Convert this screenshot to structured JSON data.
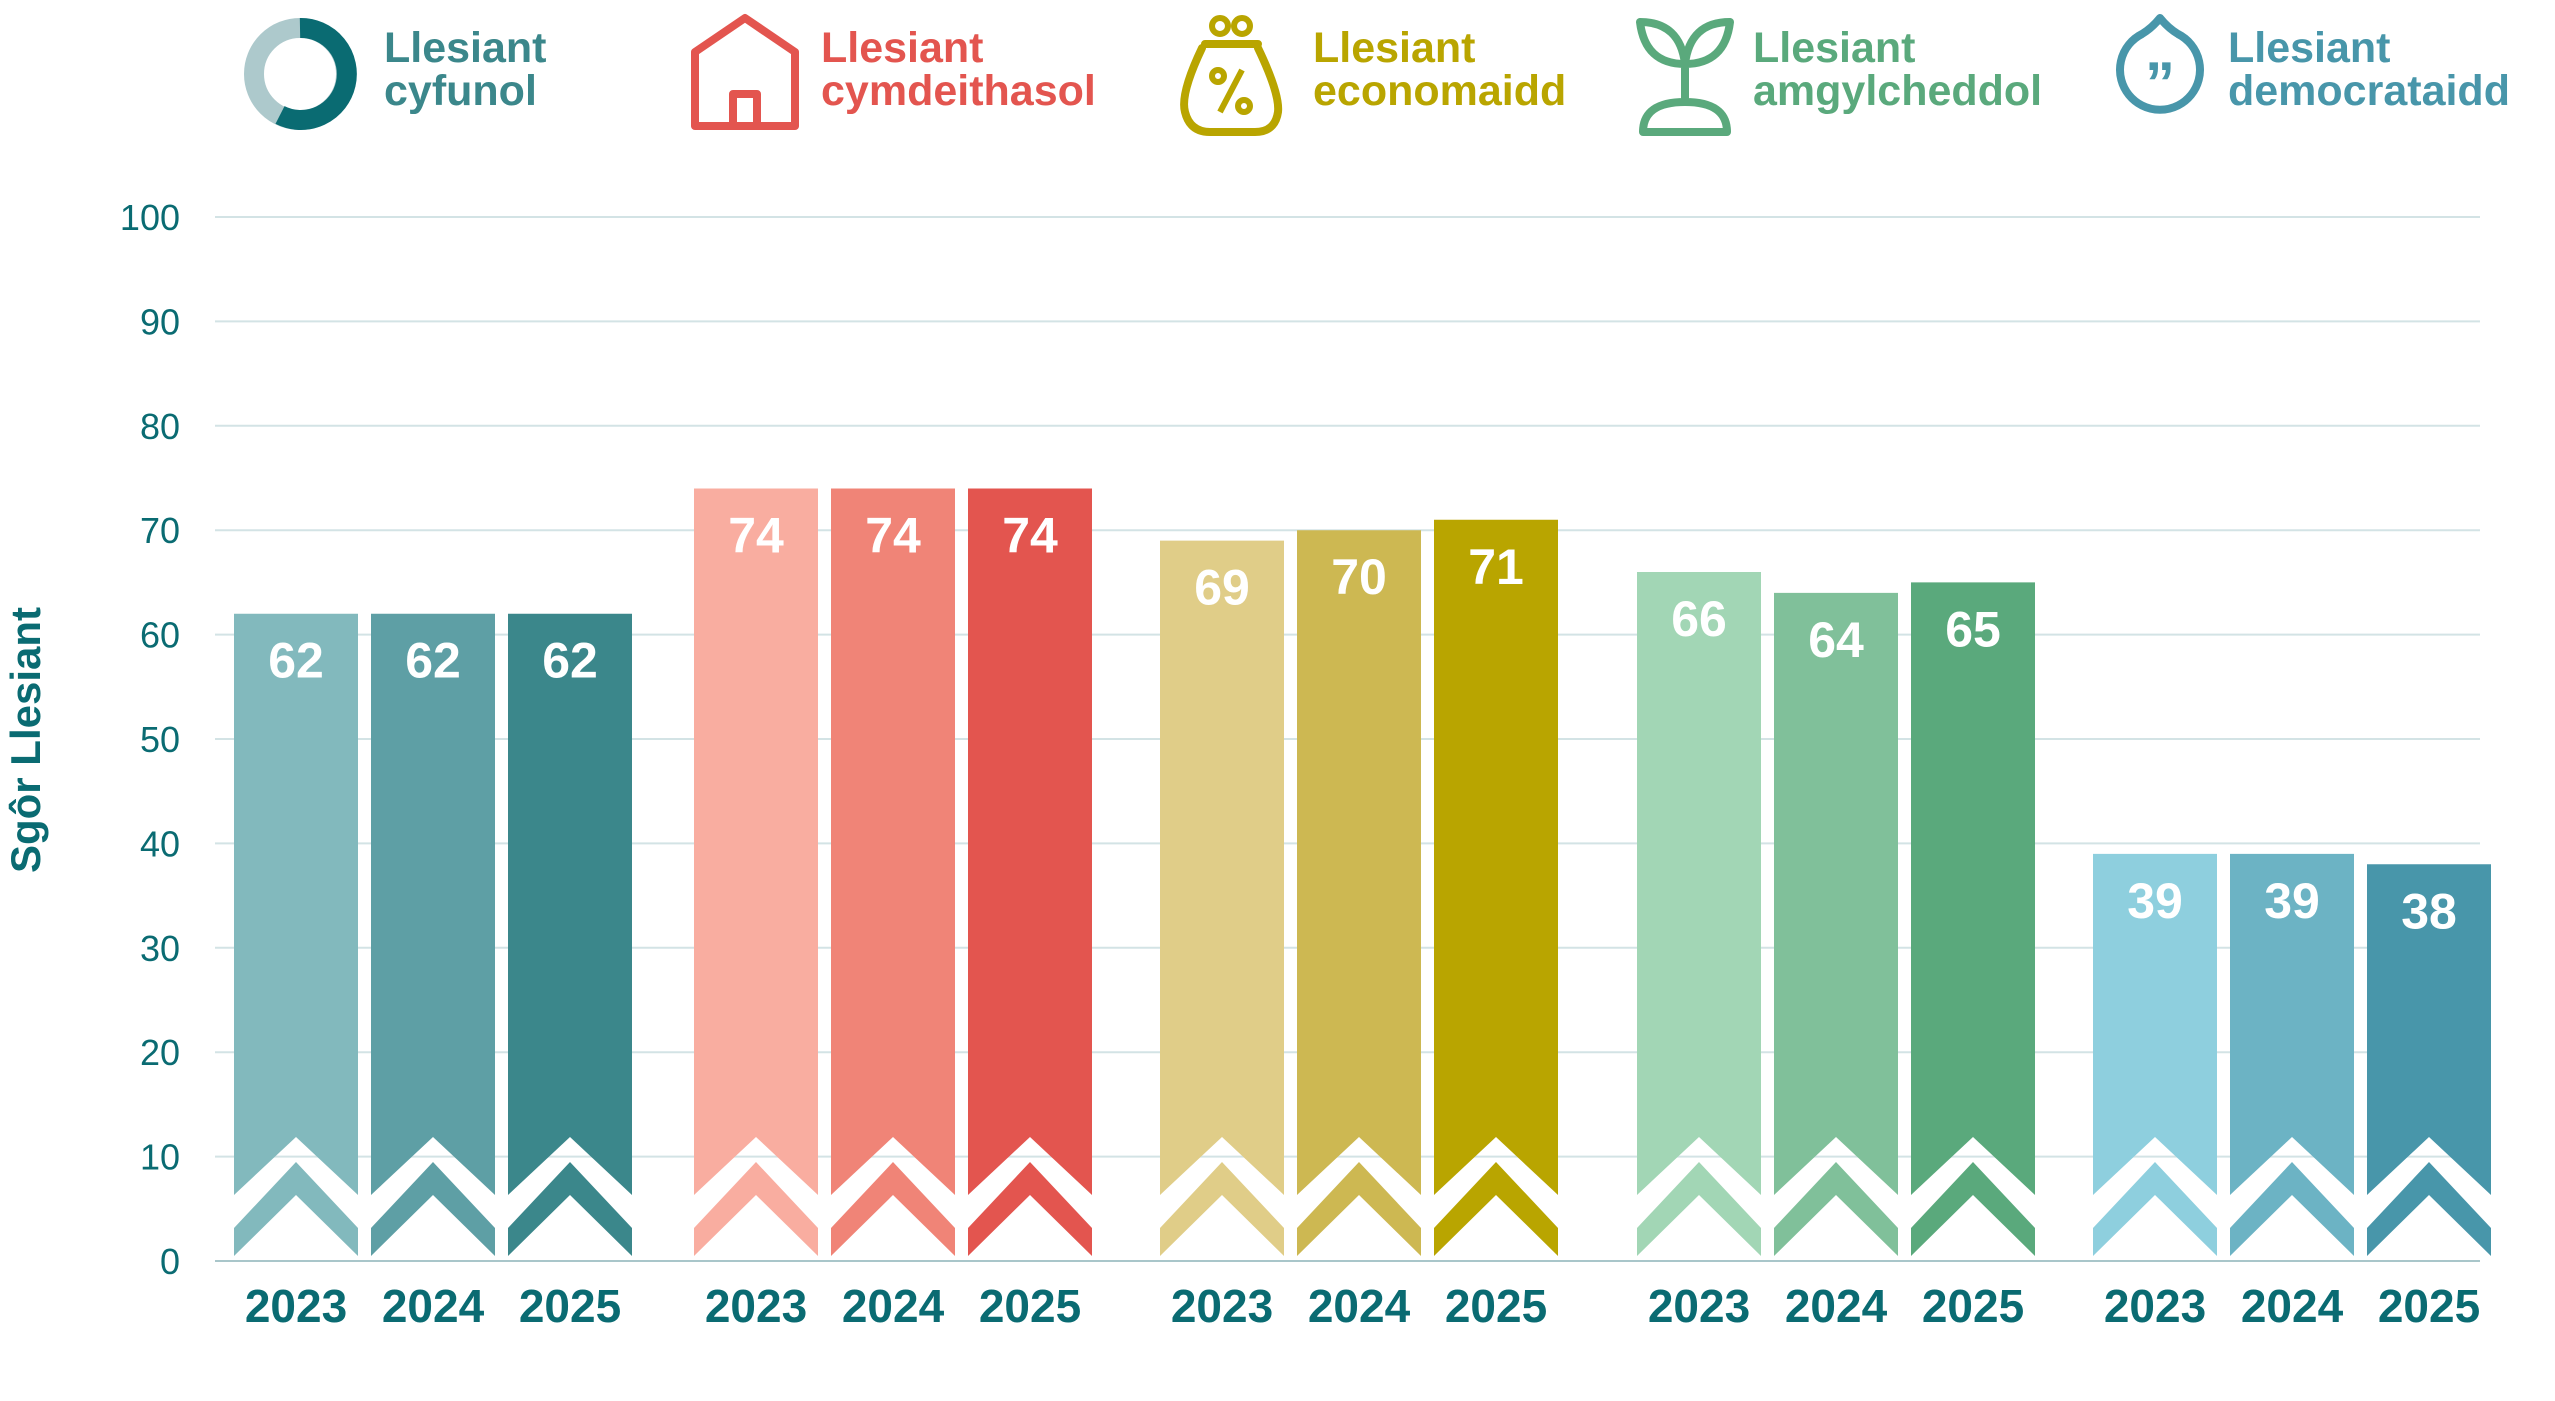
{
  "chart_data": {
    "type": "bar",
    "title": "",
    "xlabel": "",
    "ylabel": "Sgôr Llesiant",
    "ylim": [
      0,
      100
    ],
    "yticks": [
      0,
      10,
      20,
      30,
      40,
      50,
      60,
      70,
      80,
      90,
      100
    ],
    "grid": true,
    "legend_placement": "top",
    "categories": [
      "2023",
      "2024",
      "2025"
    ],
    "groups": [
      {
        "name": "Llesiant cyfunol",
        "lines": [
          "Llesiant",
          "cyfunol"
        ],
        "icon": "donut-icon",
        "color": "#3b878b",
        "bar_colors": [
          "#82b9bd",
          "#5e9fa5",
          "#3b878b"
        ],
        "values": [
          62,
          62,
          62
        ]
      },
      {
        "name": "Llesiant cymdeithasol",
        "lines": [
          "Llesiant",
          "cymdeithasol"
        ],
        "icon": "house-icon",
        "color": "#e3554f",
        "bar_colors": [
          "#f9ada0",
          "#f08477",
          "#e3554f"
        ],
        "values": [
          74,
          74,
          74
        ]
      },
      {
        "name": "Llesiant economaidd",
        "lines": [
          "Llesiant",
          "economaidd"
        ],
        "icon": "money-bag-percent-icon",
        "color": "#b9a500",
        "bar_colors": [
          "#e0cd88",
          "#cdb852",
          "#b9a500"
        ],
        "values": [
          69,
          70,
          71
        ]
      },
      {
        "name": "Llesiant amgylcheddol",
        "lines": [
          "Llesiant",
          "amgylcheddol"
        ],
        "icon": "seedling-icon",
        "color": "#5aa97c",
        "bar_colors": [
          "#a2d6b5",
          "#80c09a",
          "#5aa97c"
        ],
        "values": [
          66,
          64,
          65
        ]
      },
      {
        "name": "Llesiant democrataidd",
        "lines": [
          "Llesiant",
          "democrataidd"
        ],
        "icon": "speech-quote-icon",
        "color": "#4896aa",
        "bar_colors": [
          "#8ecfde",
          "#6cb3c4",
          "#4896aa"
        ],
        "values": [
          39,
          39,
          38
        ]
      }
    ]
  }
}
